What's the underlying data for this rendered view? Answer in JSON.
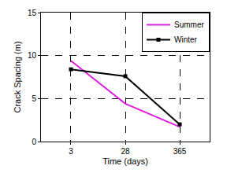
{
  "chart_data": {
    "type": "line",
    "x_label": "Time (days)",
    "y_label": "Crack Spacing (m)",
    "categories": [
      "3",
      "28",
      "365"
    ],
    "series": [
      {
        "name": "Summer",
        "color": "#e020e0",
        "marker": "none",
        "line_style": "solid",
        "values": [
          9.4,
          4.4,
          1.7
        ]
      },
      {
        "name": "Winter",
        "color": "#000000",
        "marker": "square",
        "line_style": "solid",
        "values": [
          8.4,
          7.6,
          2.0
        ]
      }
    ],
    "ylim": [
      0,
      15
    ],
    "yticks": [
      0,
      5,
      10,
      15
    ],
    "grid": true,
    "legend": "upper right"
  }
}
